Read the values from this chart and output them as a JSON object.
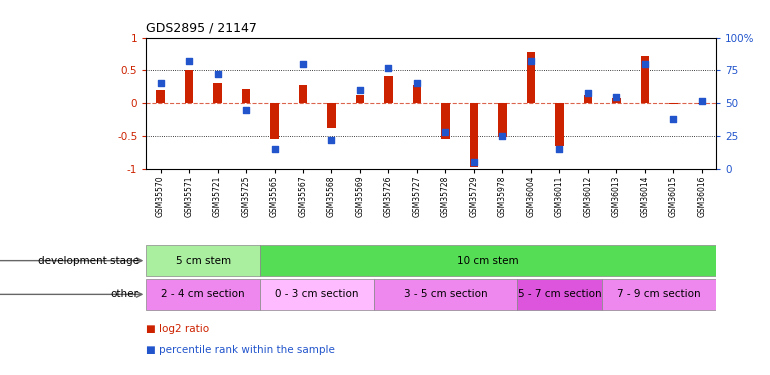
{
  "title": "GDS2895 / 21147",
  "samples": [
    "GSM35570",
    "GSM35571",
    "GSM35721",
    "GSM35725",
    "GSM35565",
    "GSM35567",
    "GSM35568",
    "GSM35569",
    "GSM35726",
    "GSM35727",
    "GSM35728",
    "GSM35729",
    "GSM35978",
    "GSM36004",
    "GSM36011",
    "GSM36012",
    "GSM36013",
    "GSM36014",
    "GSM36015",
    "GSM36016"
  ],
  "log2_ratio": [
    0.2,
    0.5,
    0.3,
    0.22,
    -0.55,
    0.28,
    -0.38,
    0.12,
    0.42,
    0.27,
    -0.55,
    -0.97,
    -0.52,
    0.78,
    -0.65,
    0.12,
    0.08,
    0.72,
    -0.02,
    -0.02
  ],
  "percentile": [
    65,
    82,
    72,
    45,
    15,
    80,
    22,
    60,
    77,
    65,
    28,
    5,
    25,
    82,
    15,
    58,
    55,
    80,
    38,
    52
  ],
  "bar_color": "#cc2200",
  "dot_color": "#2255cc",
  "ylim_left": [
    -1,
    1
  ],
  "ylim_right": [
    0,
    100
  ],
  "yticks_left": [
    -1,
    -0.5,
    0,
    0.5,
    1
  ],
  "yticks_right": [
    0,
    25,
    50,
    75,
    100
  ],
  "ytick_labels_left": [
    "-1",
    "-0.5",
    "0",
    "0.5",
    "1"
  ],
  "ytick_labels_right": [
    "0",
    "25",
    "50",
    "75",
    "100%"
  ],
  "background_color": "#ffffff",
  "dev_stage_groups": [
    {
      "text": "5 cm stem",
      "start": 0,
      "end": 4,
      "color": "#aaeea0"
    },
    {
      "text": "10 cm stem",
      "start": 4,
      "end": 20,
      "color": "#55dd55"
    }
  ],
  "other_groups": [
    {
      "text": "2 - 4 cm section",
      "start": 0,
      "end": 4,
      "color": "#ee88ee"
    },
    {
      "text": "0 - 3 cm section",
      "start": 4,
      "end": 8,
      "color": "#ffbbff"
    },
    {
      "text": "3 - 5 cm section",
      "start": 8,
      "end": 13,
      "color": "#ee88ee"
    },
    {
      "text": "5 - 7 cm section",
      "start": 13,
      "end": 16,
      "color": "#dd55dd"
    },
    {
      "text": "7 - 9 cm section",
      "start": 16,
      "end": 20,
      "color": "#ee88ee"
    }
  ],
  "dev_stage_label": "development stage",
  "other_label": "other",
  "legend_items": [
    {
      "color": "#cc2200",
      "label": "log2 ratio"
    },
    {
      "color": "#2255cc",
      "label": "percentile rank within the sample"
    }
  ]
}
